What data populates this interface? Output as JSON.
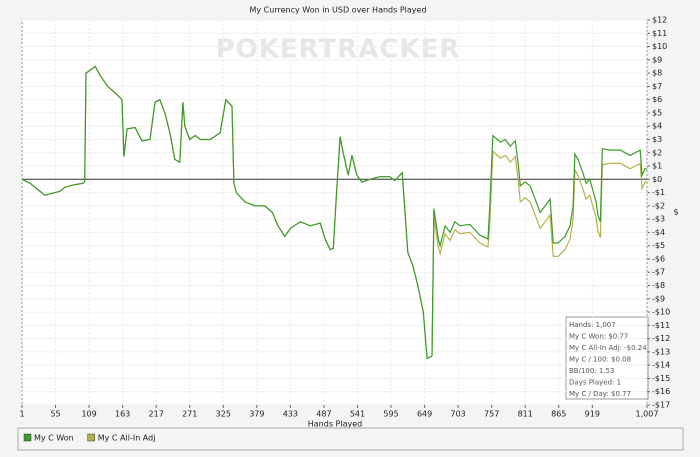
{
  "chart_data": {
    "type": "line",
    "title": "My Currency Won in USD over Hands Played",
    "watermark": "POKERTRACKER",
    "x_label": "Hands Played",
    "y_label": "$",
    "xlim": [
      1,
      1007
    ],
    "xticks": [
      1,
      55,
      109,
      163,
      217,
      271,
      325,
      379,
      433,
      487,
      541,
      595,
      649,
      703,
      757,
      811,
      865,
      919,
      {
        "value": 1007,
        "label": "1,007"
      }
    ],
    "ylim": [
      -17,
      12
    ],
    "yticks": [
      {
        "value": 12,
        "label": "$12"
      },
      {
        "value": 11,
        "label": "$11"
      },
      {
        "value": 10,
        "label": "$10"
      },
      {
        "value": 9,
        "label": "$9"
      },
      {
        "value": 8,
        "label": "$8"
      },
      {
        "value": 7,
        "label": "$7"
      },
      {
        "value": 6,
        "label": "$6"
      },
      {
        "value": 5,
        "label": "$5"
      },
      {
        "value": 4,
        "label": "$4"
      },
      {
        "value": 3,
        "label": "$3"
      },
      {
        "value": 2,
        "label": "$2"
      },
      {
        "value": 1,
        "label": "$1"
      },
      {
        "value": 0,
        "label": "$0"
      },
      {
        "value": -1,
        "label": "-$1"
      },
      {
        "value": -2,
        "label": "-$2"
      },
      {
        "value": -3,
        "label": "-$3"
      },
      {
        "value": -4,
        "label": "-$4"
      },
      {
        "value": -5,
        "label": "-$5"
      },
      {
        "value": -6,
        "label": "-$6"
      },
      {
        "value": -7,
        "label": "-$7"
      },
      {
        "value": -8,
        "label": "-$8"
      },
      {
        "value": -9,
        "label": "-$9"
      },
      {
        "value": -10,
        "label": "-$10"
      },
      {
        "value": -11,
        "label": "-$11"
      },
      {
        "value": -12,
        "label": "-$12"
      },
      {
        "value": -13,
        "label": "-$13"
      },
      {
        "value": -14,
        "label": "-$14"
      },
      {
        "value": -15,
        "label": "-$15"
      },
      {
        "value": -16,
        "label": "-$16"
      },
      {
        "value": -17,
        "label": "-$17"
      }
    ],
    "grid": true,
    "x": [
      1,
      14,
      27,
      38,
      54,
      62,
      70,
      78,
      86,
      99,
      102,
      104,
      119,
      127,
      139,
      151,
      162,
      165,
      170,
      183,
      194,
      207,
      215,
      223,
      231,
      239,
      247,
      255,
      260,
      263,
      271,
      280,
      288,
      304,
      320,
      329,
      339,
      342,
      346,
      360,
      376,
      392,
      404,
      413,
      424,
      433,
      449,
      465,
      481,
      489,
      497,
      502,
      507,
      513,
      518,
      526,
      532,
      540,
      548,
      561,
      577,
      593,
      601,
      613,
      616,
      622,
      630,
      638,
      647,
      653,
      661,
      664,
      671,
      674,
      682,
      690,
      698,
      706,
      722,
      738,
      751,
      754,
      759,
      771,
      779,
      787,
      795,
      800,
      803,
      811,
      819,
      827,
      835,
      843,
      851,
      856,
      864,
      875,
      883,
      888,
      891,
      896,
      903,
      909,
      915,
      925,
      928,
      932,
      935,
      948,
      964,
      980,
      996,
      999,
      1004,
      1007
    ],
    "series": [
      {
        "name": "My C Won",
        "color": "#3c9a2c",
        "values": [
          0,
          -0.3,
          -0.8,
          -1.2,
          -1.0,
          -0.9,
          -0.6,
          -0.5,
          -0.4,
          -0.3,
          -0.2,
          8.0,
          8.5,
          7.8,
          7.0,
          6.5,
          6.0,
          1.7,
          3.8,
          3.9,
          2.9,
          3.0,
          5.8,
          6.0,
          5.0,
          3.5,
          1.5,
          1.3,
          5.8,
          4.0,
          3.0,
          3.3,
          3.0,
          3.0,
          3.5,
          6.0,
          5.5,
          -0.3,
          -1.0,
          -1.7,
          -2.0,
          -2.0,
          -2.5,
          -3.5,
          -4.3,
          -3.7,
          -3.2,
          -3.5,
          -3.3,
          -4.5,
          -5.3,
          -5.2,
          -1.2,
          3.2,
          2.0,
          0.3,
          1.8,
          0.3,
          -0.2,
          0.0,
          0.2,
          0.2,
          -0.1,
          0.5,
          -1.5,
          -5.5,
          -6.5,
          -8.0,
          -10.0,
          -13.5,
          -13.3,
          -2.2,
          -4.5,
          -5.0,
          -3.5,
          -4.0,
          -3.2,
          -3.5,
          -3.4,
          -4.2,
          -4.5,
          -2.0,
          3.3,
          2.8,
          3.0,
          2.5,
          2.9,
          1.0,
          -0.5,
          -0.2,
          -0.5,
          -1.5,
          -2.5,
          -2.0,
          -1.5,
          -4.8,
          -4.8,
          -4.3,
          -3.5,
          -2.0,
          1.9,
          1.5,
          0.6,
          -0.3,
          0.0,
          -1.7,
          -2.7,
          -3.2,
          2.3,
          2.2,
          2.2,
          1.8,
          2.2,
          0.3,
          0.8,
          0.77
        ]
      },
      {
        "name": "My C All-In Adj",
        "color": "#b4b24a",
        "values": [
          0,
          -0.3,
          -0.8,
          -1.2,
          -1.0,
          -0.9,
          -0.6,
          -0.5,
          -0.4,
          -0.3,
          -0.2,
          8.0,
          8.5,
          7.8,
          7.0,
          6.5,
          6.0,
          1.7,
          3.8,
          3.9,
          2.9,
          3.0,
          5.8,
          6.0,
          5.0,
          3.5,
          1.5,
          1.3,
          5.8,
          4.0,
          3.0,
          3.3,
          3.0,
          3.0,
          3.5,
          6.0,
          5.5,
          -0.3,
          -1.0,
          -1.7,
          -2.0,
          -2.0,
          -2.5,
          -3.5,
          -4.3,
          -3.7,
          -3.2,
          -3.5,
          -3.3,
          -4.5,
          -5.3,
          -5.2,
          -1.2,
          3.2,
          2.0,
          0.3,
          1.8,
          0.3,
          -0.2,
          0.0,
          0.2,
          0.2,
          -0.1,
          0.5,
          -1.5,
          -5.5,
          -6.5,
          -8.0,
          -10.0,
          -13.5,
          -13.3,
          -2.8,
          -5.1,
          -5.6,
          -4.1,
          -4.6,
          -3.8,
          -4.1,
          -4.0,
          -4.8,
          -5.1,
          -3.2,
          2.1,
          1.6,
          1.8,
          1.3,
          1.7,
          -0.2,
          -1.7,
          -1.4,
          -1.7,
          -2.7,
          -3.7,
          -3.2,
          -2.7,
          -5.8,
          -5.8,
          -5.3,
          -4.5,
          -3.0,
          0.7,
          0.3,
          -0.6,
          -1.5,
          -1.2,
          -2.9,
          -3.9,
          -4.4,
          1.1,
          1.2,
          1.2,
          0.8,
          1.2,
          -0.7,
          -0.2,
          -0.24
        ]
      }
    ],
    "stats": [
      "Hands: 1,007",
      "My C Won: $0.77",
      "My C All-In Adj: -$0.24",
      "My C / 100: $0.08",
      "BB/100: 1.53",
      "Days Played: 1",
      "My C / Day: $0.77"
    ]
  }
}
